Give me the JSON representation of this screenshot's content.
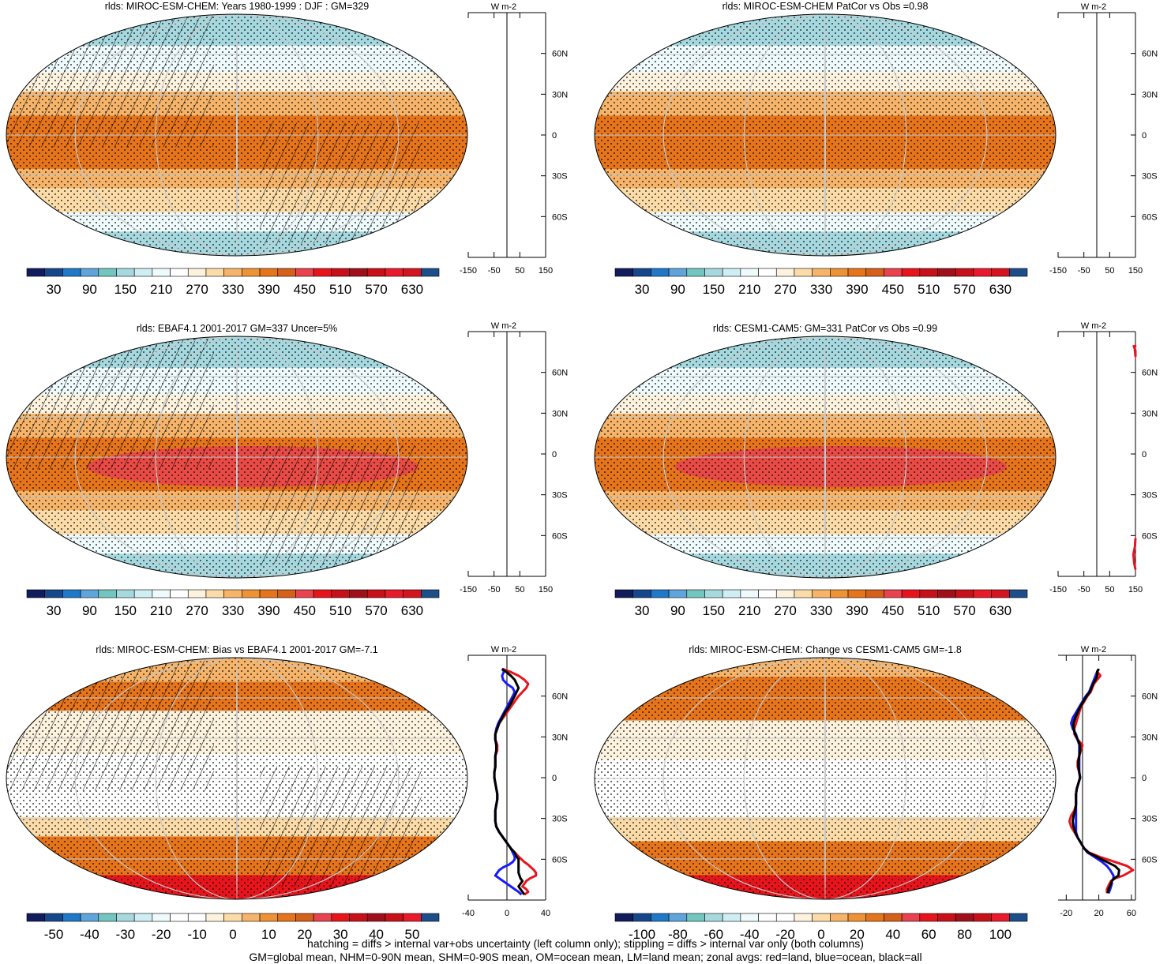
{
  "chart_data": [
    {
      "type": "heatmap",
      "title": "rlds: MIROC-ESM-CHEM: Years 1980-1999 : DJF : GM=329",
      "colorbar_ticks": [
        "30",
        "90",
        "150",
        "210",
        "270",
        "330",
        "390",
        "450",
        "510",
        "570",
        "630"
      ],
      "colorbar": "abs",
      "lat_ticks": [
        "60N",
        "30N",
        "0",
        "30S",
        "60S"
      ],
      "zonal_xticks": [
        "-150",
        "-50",
        "50",
        "150"
      ],
      "zonal_xlim": [
        -150,
        150
      ],
      "zonal_units": "W m-2",
      "hatched": true,
      "zonal_series": []
    },
    {
      "type": "heatmap",
      "title": "rlds: MIROC-ESM-CHEM PatCor vs Obs =0.98",
      "colorbar_ticks": [
        "30",
        "90",
        "150",
        "210",
        "270",
        "330",
        "390",
        "450",
        "510",
        "570",
        "630"
      ],
      "colorbar": "abs",
      "lat_ticks": [
        "60N",
        "30N",
        "0",
        "30S",
        "60S"
      ],
      "zonal_xticks": [
        "-150",
        "-50",
        "50",
        "150"
      ],
      "zonal_xlim": [
        -150,
        150
      ],
      "zonal_units": "W m-2",
      "hatched": false,
      "zonal_series": []
    },
    {
      "type": "heatmap",
      "title": "rlds: EBAF4.1 2001-2017 GM=337 Uncer=5%",
      "colorbar_ticks": [
        "30",
        "90",
        "150",
        "210",
        "270",
        "330",
        "390",
        "450",
        "510",
        "570",
        "630"
      ],
      "colorbar": "abs",
      "lat_ticks": [
        "60N",
        "30N",
        "0",
        "30S",
        "60S"
      ],
      "zonal_xticks": [
        "-150",
        "-50",
        "50",
        "150"
      ],
      "zonal_xlim": [
        -150,
        150
      ],
      "zonal_units": "W m-2",
      "hatched": true,
      "zonal_series": []
    },
    {
      "type": "heatmap",
      "title": "rlds: CESM1-CAM5: GM=331 PatCor vs Obs =0.99",
      "colorbar_ticks": [
        "30",
        "90",
        "150",
        "210",
        "270",
        "330",
        "390",
        "450",
        "510",
        "570",
        "630"
      ],
      "colorbar": "abs",
      "lat_ticks": [
        "60N",
        "30N",
        "0",
        "30S",
        "60S"
      ],
      "zonal_xticks": [
        "-150",
        "-50",
        "50",
        "150"
      ],
      "zonal_xlim": [
        -150,
        150
      ],
      "zonal_units": "W m-2",
      "hatched": false,
      "zonal_series": [
        {
          "color": "#e8141c",
          "x": [
            142,
            150,
            150,
            147,
            150
          ],
          "y": [
            80,
            76,
            72,
            78,
            80
          ]
        },
        {
          "color": "#e8141c",
          "x": [
            150,
            148,
            142,
            145,
            150
          ],
          "y": [
            -62,
            -68,
            -74,
            -80,
            -85
          ]
        }
      ]
    },
    {
      "type": "heatmap",
      "title": "rlds: MIROC-ESM-CHEM: Bias vs EBAF4.1 2001-2017 GM=-7.1",
      "colorbar_ticks": [
        "-50",
        "-40",
        "-30",
        "-20",
        "-10",
        "0",
        "10",
        "20",
        "30",
        "40",
        "50"
      ],
      "colorbar": "bias",
      "lat_ticks": [
        "60N",
        "30N",
        "0",
        "30S",
        "60S"
      ],
      "zonal_xticks": [
        "-40",
        "0",
        "40"
      ],
      "zonal_xlim": [
        -40,
        40
      ],
      "zonal_units": "W m-2",
      "hatched": true,
      "zonal_series": [
        {
          "color": "#e8141c",
          "x": [
            -5,
            3,
            12,
            18,
            22,
            20,
            16,
            12,
            8,
            4,
            0,
            -4,
            -8,
            -10,
            -12,
            -12,
            -10,
            -10,
            -12,
            -12,
            -12,
            -13,
            -13,
            -12,
            -11,
            -10,
            -10,
            -11,
            -12,
            -12,
            -12,
            -11,
            -8,
            -4,
            0,
            4,
            8,
            12,
            15,
            18,
            22,
            25,
            28,
            30,
            30,
            24,
            20,
            18,
            16,
            20,
            22,
            18
          ],
          "y": [
            80,
            78,
            75,
            72,
            69,
            66,
            63,
            60,
            56,
            52,
            48,
            44,
            40,
            36,
            32,
            28,
            24,
            20,
            16,
            12,
            8,
            4,
            0,
            -4,
            -8,
            -12,
            -16,
            -20,
            -24,
            -28,
            -32,
            -36,
            -40,
            -44,
            -48,
            -52,
            -55,
            -58,
            -60,
            -62,
            -64,
            -66,
            -68,
            -70,
            -72,
            -74,
            -76,
            -78,
            -80,
            -82,
            -84,
            -86
          ]
        },
        {
          "color": "#1a1aff",
          "x": [
            -5,
            -3,
            -5,
            -4,
            0,
            6,
            8,
            6,
            3,
            0,
            -3,
            -6,
            -9,
            -11,
            -12,
            -12,
            -11,
            -11,
            -12,
            -12,
            -12,
            -13,
            -13,
            -12,
            -11,
            -10,
            -10,
            -11,
            -12,
            -12,
            -12,
            -11,
            -8,
            -4,
            0,
            4,
            6,
            8,
            8,
            6,
            2,
            -4,
            -8,
            -10,
            -12,
            -8,
            -4,
            0,
            4,
            8,
            12,
            15
          ],
          "y": [
            80,
            78,
            75,
            72,
            69,
            66,
            63,
            60,
            56,
            52,
            48,
            44,
            40,
            36,
            32,
            28,
            24,
            20,
            16,
            12,
            8,
            4,
            0,
            -4,
            -8,
            -12,
            -16,
            -20,
            -24,
            -28,
            -32,
            -36,
            -40,
            -44,
            -48,
            -52,
            -55,
            -58,
            -60,
            -62,
            -64,
            -66,
            -68,
            -70,
            -72,
            -74,
            -76,
            -78,
            -80,
            -82,
            -84,
            -86
          ]
        },
        {
          "color": "#000000",
          "x": [
            -5,
            -1,
            4,
            8,
            10,
            12,
            10,
            8,
            5,
            2,
            -2,
            -5,
            -8,
            -10,
            -12,
            -12,
            -11,
            -11,
            -12,
            -12,
            -12,
            -13,
            -13,
            -12,
            -11,
            -10,
            -10,
            -11,
            -12,
            -12,
            -12,
            -11,
            -8,
            -4,
            0,
            4,
            8,
            10,
            12,
            12,
            12,
            12,
            12,
            12,
            13,
            14,
            16,
            14,
            12,
            14,
            16,
            18
          ],
          "y": [
            80,
            78,
            75,
            72,
            69,
            66,
            63,
            60,
            56,
            52,
            48,
            44,
            40,
            36,
            32,
            28,
            24,
            20,
            16,
            12,
            8,
            4,
            0,
            -4,
            -8,
            -12,
            -16,
            -20,
            -24,
            -28,
            -32,
            -36,
            -40,
            -44,
            -48,
            -52,
            -55,
            -58,
            -60,
            -62,
            -64,
            -66,
            -68,
            -70,
            -72,
            -74,
            -76,
            -78,
            -80,
            -82,
            -84,
            -86
          ]
        }
      ]
    },
    {
      "type": "heatmap",
      "title": "rlds: MIROC-ESM-CHEM: Change vs CESM1-CAM5 GM=-1.8",
      "colorbar_ticks": [
        "-100",
        "-80",
        "-60",
        "-40",
        "-20",
        "0",
        "20",
        "40",
        "60",
        "80",
        "100"
      ],
      "colorbar": "change",
      "lat_ticks": [
        "60N",
        "30N",
        "0",
        "30S",
        "60S"
      ],
      "zonal_xticks": [
        "-20",
        "20",
        "60"
      ],
      "zonal_xlim": [
        -30,
        65
      ],
      "zonal_units": "W m-2",
      "hatched": false,
      "zonal_series": [
        {
          "color": "#e8141c",
          "x": [
            20,
            18,
            22,
            18,
            14,
            12,
            10,
            6,
            2,
            -2,
            -4,
            -6,
            -8,
            -10,
            -10,
            -6,
            0,
            -2,
            -4,
            -6,
            -6,
            -4,
            -3,
            -5,
            -7,
            -8,
            -8,
            -8,
            -10,
            -14,
            -16,
            -14,
            -10,
            -6,
            -2,
            2,
            8,
            20,
            40,
            55,
            62,
            50,
            40,
            35,
            33,
            30,
            30
          ],
          "y": [
            80,
            78,
            75,
            72,
            69,
            66,
            63,
            60,
            56,
            52,
            48,
            44,
            40,
            36,
            32,
            28,
            24,
            20,
            16,
            12,
            8,
            4,
            0,
            -4,
            -8,
            -12,
            -16,
            -20,
            -24,
            -28,
            -32,
            -36,
            -40,
            -44,
            -48,
            -52,
            -55,
            -58,
            -62,
            -65,
            -68,
            -72,
            -74,
            -76,
            -78,
            -82,
            -85
          ]
        },
        {
          "color": "#1a1aff",
          "x": [
            20,
            18,
            16,
            14,
            12,
            10,
            8,
            4,
            0,
            -4,
            -8,
            -12,
            -14,
            -12,
            -8,
            -6,
            -4,
            -4,
            -4,
            -4,
            -4,
            -4,
            -3,
            -5,
            -7,
            -8,
            -8,
            -8,
            -8,
            -8,
            -8,
            -8,
            -8,
            -6,
            -2,
            2,
            6,
            14,
            24,
            30,
            34,
            38,
            38,
            36,
            36,
            34,
            32
          ],
          "y": [
            80,
            78,
            75,
            72,
            69,
            66,
            63,
            60,
            56,
            52,
            48,
            44,
            40,
            36,
            32,
            28,
            24,
            20,
            16,
            12,
            8,
            4,
            0,
            -4,
            -8,
            -12,
            -16,
            -20,
            -24,
            -28,
            -32,
            -36,
            -40,
            -44,
            -48,
            -52,
            -55,
            -58,
            -62,
            -65,
            -68,
            -72,
            -74,
            -76,
            -78,
            -82,
            -85
          ]
        },
        {
          "color": "#000000",
          "x": [
            20,
            18,
            18,
            16,
            13,
            11,
            9,
            5,
            1,
            -3,
            -6,
            -9,
            -11,
            -11,
            -9,
            -6,
            -3,
            -3,
            -4,
            -5,
            -5,
            -4,
            -3,
            -5,
            -7,
            -8,
            -8,
            -8,
            -9,
            -11,
            -12,
            -11,
            -9,
            -6,
            -2,
            2,
            7,
            17,
            30,
            40,
            45,
            44,
            39,
            36,
            35,
            32,
            31
          ],
          "y": [
            80,
            78,
            75,
            72,
            69,
            66,
            63,
            60,
            56,
            52,
            48,
            44,
            40,
            36,
            32,
            28,
            24,
            20,
            16,
            12,
            8,
            4,
            0,
            -4,
            -8,
            -12,
            -16,
            -20,
            -24,
            -28,
            -32,
            -36,
            -40,
            -44,
            -48,
            -52,
            -55,
            -58,
            -62,
            -65,
            -68,
            -72,
            -74,
            -76,
            -78,
            -82,
            -85
          ]
        }
      ]
    }
  ],
  "colors": {
    "abs_palette": [
      "#111c5c",
      "#16478c",
      "#1f78c8",
      "#5fa5dc",
      "#73c6c0",
      "#a6d9df",
      "#cfeef3",
      "#eefafc",
      "#ffffff",
      "#fdf2de",
      "#fbdca8",
      "#f5b46a",
      "#ee9236",
      "#e6741a",
      "#d4601a",
      "#e8434e",
      "#e8141c",
      "#c8101a",
      "#a0101a",
      "#c8101a",
      "#e81a2c",
      "#d4141e",
      "#1d4e8a"
    ],
    "bias_palette": [
      "#111c5c",
      "#16478c",
      "#1f78c8",
      "#5fa5dc",
      "#73c6c0",
      "#a6d9df",
      "#cfeef3",
      "#eefafc",
      "#ffffff",
      "#ffffff",
      "#fdf2de",
      "#fbdca8",
      "#f5b46a",
      "#ee9236",
      "#e6741a",
      "#d4601a",
      "#e8434e",
      "#e8141c",
      "#c8101a",
      "#a0101a",
      "#c8101a",
      "#e81a2c",
      "#1d4e8a"
    ],
    "stipple": "#000000",
    "graticule": "#c8c8c8"
  },
  "footer": {
    "line1": "hatching = diffs > internal var+obs uncertainty (left column only); stippling = diffs > internal var only (both columns)",
    "line2": "GM=global mean, NHM=0-90N mean, SHM=0-90S mean, OM=ocean mean, LM=land mean; zonal avgs: red=land, blue=ocean, black=all"
  }
}
